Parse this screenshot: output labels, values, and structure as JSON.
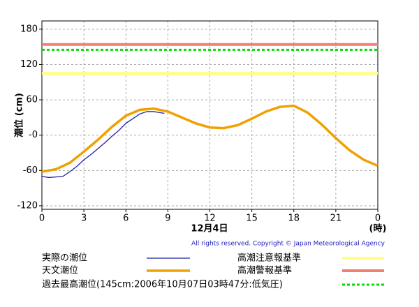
{
  "chart_data": {
    "type": "line",
    "ylabel": "潮位 (cm)",
    "xlabel": "12月4日",
    "xunit": "(時)",
    "copyright": "All rights reserved. Copyright © Japan Meteorological Agency",
    "xlim": [
      0,
      24
    ],
    "xticks": [
      0,
      3,
      6,
      9,
      12,
      15,
      18,
      21,
      {
        "value": 24,
        "label": "0"
      }
    ],
    "ylim": [
      -126,
      194
    ],
    "yticks": [
      180,
      120,
      60,
      {
        "value": 0,
        "label": "-0"
      },
      -60,
      -120
    ],
    "grid": true,
    "series": [
      {
        "name": "実際の潮位",
        "color": "#2020a0",
        "width": 1.3,
        "x": [
          0,
          0.5,
          1,
          1.5,
          2,
          2.5,
          3,
          3.5,
          4,
          4.5,
          5,
          5.5,
          6,
          6.5,
          7,
          7.5,
          8,
          8.5,
          8.75
        ],
        "values": [
          -70,
          -72,
          -71,
          -70,
          -62,
          -53,
          -42,
          -33,
          -23,
          -13,
          -2,
          8,
          20,
          28,
          36,
          40,
          40,
          38,
          37
        ]
      },
      {
        "name": "天文潮位",
        "color": "#f0a000",
        "width": 3.5,
        "x": [
          0,
          1,
          2,
          3,
          4,
          5,
          6,
          7,
          8,
          9,
          10,
          11,
          12,
          13,
          14,
          15,
          16,
          17,
          18,
          19,
          20,
          21,
          22,
          23,
          24
        ],
        "values": [
          -62,
          -58,
          -47,
          -28,
          -8,
          14,
          33,
          43,
          45,
          40,
          30,
          20,
          13,
          12,
          17,
          28,
          40,
          48,
          50,
          38,
          18,
          -5,
          -26,
          -42,
          -52
        ]
      }
    ],
    "thresholds": [
      {
        "name": "高潮注意報基準",
        "value": 105,
        "color": "#ffff80",
        "width": 4
      },
      {
        "name": "高潮警報基準",
        "value": 154,
        "color": "#f08070",
        "width": 4
      },
      {
        "name": "過去最高潮位(145cm:2006年10月07日03時47分:低気圧)",
        "value": 145,
        "color": "#00dd00",
        "width": 3,
        "dashed": true
      }
    ]
  }
}
